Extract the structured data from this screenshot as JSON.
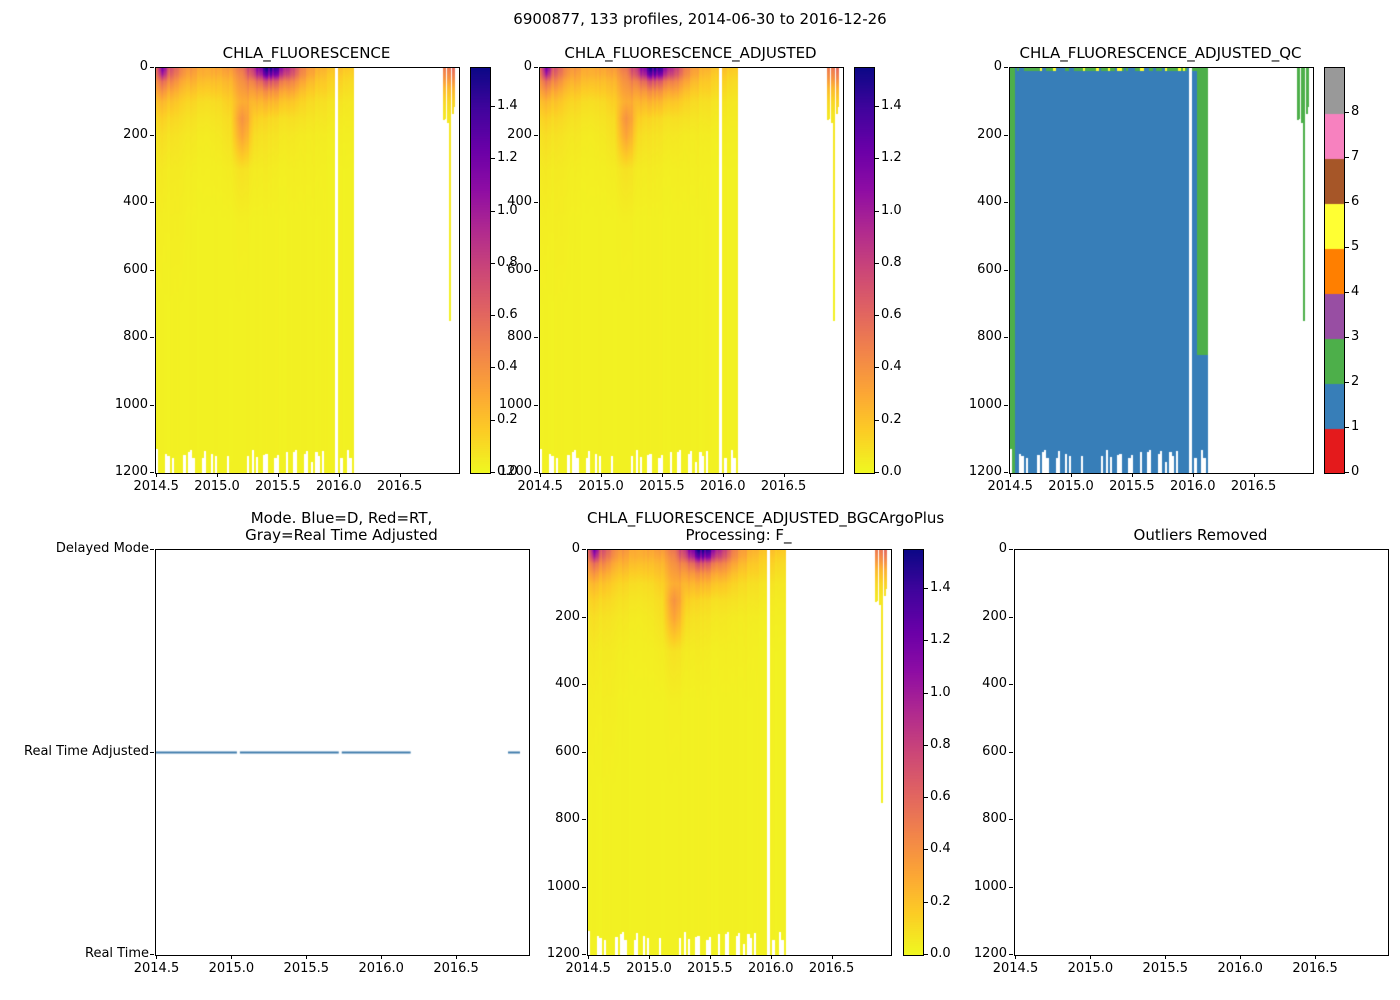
{
  "figure": {
    "title": "6900877, 133 profiles, 2014-06-30 to 2016-12-26",
    "float_id": "6900877",
    "n_profiles": 133,
    "date_start": "2014-06-30",
    "date_end": "2016-12-26",
    "background": "#ffffff"
  },
  "palette": {
    "axis_color": "#000000",
    "mode_line": "#3d7bab",
    "plasma_stops": [
      [
        0.0,
        "#0d0887"
      ],
      [
        0.1,
        "#41049d"
      ],
      [
        0.2,
        "#6a00a8"
      ],
      [
        0.3,
        "#8f0da4"
      ],
      [
        0.4,
        "#b12a90"
      ],
      [
        0.5,
        "#cc4778"
      ],
      [
        0.6,
        "#e16462"
      ],
      [
        0.7,
        "#f2844b"
      ],
      [
        0.8,
        "#fca636"
      ],
      [
        0.9,
        "#fcce25"
      ],
      [
        1.0,
        "#f0f921"
      ]
    ],
    "qc_colors": [
      "#e41a1c",
      "#377eb8",
      "#4daf4a",
      "#984ea3",
      "#ff7f00",
      "#ffff33",
      "#a65628",
      "#f781bf",
      "#999999"
    ]
  },
  "axes_shared": {
    "xlim": [
      2014.49,
      2016.98
    ],
    "x_ticks": {
      "values": [
        2014.5,
        2015.0,
        2015.5,
        2016.0,
        2016.5
      ],
      "labels": [
        "2014.5",
        "2015.0",
        "2015.5",
        "2016.0",
        "2016.5"
      ]
    },
    "depth_lim": [
      0,
      1200
    ],
    "depth_ticks": {
      "values": [
        0,
        200,
        400,
        600,
        800,
        1000,
        1200
      ],
      "labels": [
        "0",
        "200",
        "400",
        "600",
        "800",
        "1000",
        "1200"
      ]
    }
  },
  "field": {
    "t_start": 2014.49,
    "t_end": 2016.12,
    "profile_spacing_years": 0.0187,
    "gaps": [
      [
        2015.96,
        2015.985
      ]
    ],
    "bottom_depth_base": 1150,
    "bottom_depth_max": 1200,
    "grid": {
      "times": [
        2014.49,
        2014.55,
        2014.6,
        2014.7,
        2014.8,
        2014.9,
        2015.0,
        2015.1,
        2015.2,
        2015.3,
        2015.4,
        2015.5,
        2015.6,
        2015.7,
        2015.8,
        2015.9,
        2016.0,
        2016.12
      ],
      "depths": [
        0,
        20,
        40,
        70,
        100,
        150,
        200,
        300,
        450,
        700,
        1000,
        1200
      ],
      "values": [
        [
          0.55,
          1.25,
          0.7,
          0.45,
          0.35,
          0.3,
          0.32,
          0.38,
          0.55,
          0.95,
          1.45,
          1.3,
          0.8,
          0.45,
          0.3,
          0.22,
          0.2,
          0.16
        ],
        [
          0.5,
          1.0,
          0.6,
          0.4,
          0.3,
          0.28,
          0.28,
          0.32,
          0.48,
          0.8,
          1.2,
          1.05,
          0.68,
          0.4,
          0.26,
          0.18,
          0.16,
          0.13
        ],
        [
          0.4,
          0.6,
          0.45,
          0.3,
          0.25,
          0.22,
          0.22,
          0.26,
          0.42,
          0.52,
          0.7,
          0.6,
          0.45,
          0.3,
          0.2,
          0.15,
          0.13,
          0.1
        ],
        [
          0.3,
          0.4,
          0.3,
          0.22,
          0.18,
          0.16,
          0.17,
          0.21,
          0.36,
          0.36,
          0.4,
          0.36,
          0.3,
          0.2,
          0.15,
          0.12,
          0.1,
          0.08
        ],
        [
          0.2,
          0.25,
          0.2,
          0.15,
          0.12,
          0.1,
          0.11,
          0.16,
          0.3,
          0.25,
          0.25,
          0.22,
          0.18,
          0.13,
          0.1,
          0.08,
          0.07,
          0.06
        ],
        [
          0.12,
          0.15,
          0.12,
          0.1,
          0.08,
          0.07,
          0.08,
          0.11,
          0.42,
          0.15,
          0.12,
          0.1,
          0.09,
          0.08,
          0.07,
          0.06,
          0.05,
          0.05
        ],
        [
          0.08,
          0.1,
          0.08,
          0.07,
          0.06,
          0.05,
          0.06,
          0.09,
          0.34,
          0.1,
          0.08,
          0.07,
          0.06,
          0.05,
          0.05,
          0.04,
          0.04,
          0.04
        ],
        [
          0.05,
          0.06,
          0.05,
          0.05,
          0.04,
          0.04,
          0.04,
          0.05,
          0.09,
          0.05,
          0.05,
          0.04,
          0.04,
          0.04,
          0.04,
          0.03,
          0.03,
          0.03
        ],
        [
          0.04,
          0.04,
          0.04,
          0.04,
          0.03,
          0.03,
          0.03,
          0.03,
          0.04,
          0.03,
          0.03,
          0.03,
          0.03,
          0.03,
          0.03,
          0.03,
          0.03,
          0.03
        ],
        [
          0.03,
          0.03,
          0.03,
          0.03,
          0.03,
          0.03,
          0.03,
          0.03,
          0.03,
          0.03,
          0.03,
          0.03,
          0.03,
          0.03,
          0.03,
          0.03,
          0.03,
          0.03
        ],
        [
          0.03,
          0.03,
          0.03,
          0.03,
          0.03,
          0.03,
          0.03,
          0.03,
          0.03,
          0.03,
          0.03,
          0.03,
          0.03,
          0.03,
          0.03,
          0.03,
          0.03,
          0.03
        ],
        [
          0.03,
          0.03,
          0.03,
          0.03,
          0.03,
          0.03,
          0.03,
          0.03,
          0.03,
          0.03,
          0.03,
          0.03,
          0.03,
          0.03,
          0.03,
          0.03,
          0.03,
          0.03
        ]
      ]
    },
    "late_block": {
      "t0": 2016.85,
      "t1": 2016.95,
      "gaps": [
        [
          2016.872,
          2016.878
        ],
        [
          2016.918,
          2016.924
        ]
      ],
      "base_depth": 140,
      "streak": {
        "t0": 2016.895,
        "t1": 2016.911,
        "depth": 750
      },
      "profile": [
        [
          0,
          0.55
        ],
        [
          30,
          0.42
        ],
        [
          60,
          0.25
        ],
        [
          100,
          0.13
        ],
        [
          140,
          0.07
        ],
        [
          760,
          0.03
        ]
      ]
    }
  },
  "qc_field": {
    "default_flag": 1,
    "surface_depth": 8,
    "surface_dash_flags": [
      2,
      5
    ],
    "regions": [
      {
        "t0": 2014.49,
        "t1": 2014.535,
        "d0": 0,
        "d1": 1200,
        "flag": 2
      },
      {
        "t0": 2016.03,
        "t1": 2016.12,
        "d0": 0,
        "d1": 850,
        "flag": 2
      },
      {
        "t0": 2016.85,
        "t1": 2016.95,
        "d0": 0,
        "d1": 760,
        "flag": 2
      }
    ]
  },
  "chart_data": [
    {
      "type": "heatmap",
      "title": "CHLA_FLUORESCENCE",
      "x": "time (decimal year)",
      "y": "pressure/depth (dbar), 0 at top increasing downward",
      "xlim": [
        2014.49,
        2016.98
      ],
      "ylim": [
        1200,
        0
      ],
      "cmap": "plasma_r",
      "colorbar": {
        "vmin": 0.0,
        "vmax": 1.55,
        "ticks": [
          0.0,
          0.2,
          0.4,
          0.6,
          0.8,
          1.0,
          1.2,
          1.4
        ],
        "labels": [
          "0.0",
          "0.2",
          "0.4",
          "0.6",
          "0.8",
          "1.0",
          "1.2",
          "1.4"
        ]
      },
      "data_source": "field.grid"
    },
    {
      "type": "heatmap",
      "title": "CHLA_FLUORESCENCE_ADJUSTED",
      "xlim": [
        2014.49,
        2016.98
      ],
      "ylim": [
        1200,
        0
      ],
      "cmap": "plasma_r",
      "colorbar": {
        "vmin": 0.0,
        "vmax": 1.55,
        "ticks": [
          0.0,
          0.2,
          0.4,
          0.6,
          0.8,
          1.0,
          1.2,
          1.4
        ],
        "labels": [
          "0.0",
          "0.2",
          "0.4",
          "0.6",
          "0.8",
          "1.0",
          "1.2",
          "1.4"
        ]
      },
      "data_source": "field.grid"
    },
    {
      "type": "heatmap",
      "title": "CHLA_FLUORESCENCE_ADJUSTED_QC",
      "xlim": [
        2014.49,
        2016.98
      ],
      "ylim": [
        1200,
        0
      ],
      "cmap": "Set1 discrete",
      "colorbar": {
        "range": [
          0,
          9
        ],
        "ticks": [
          0,
          1,
          2,
          3,
          4,
          5,
          6,
          7,
          8
        ],
        "labels": [
          "0",
          "1",
          "2",
          "3",
          "4",
          "5",
          "6",
          "7",
          "8"
        ]
      },
      "data_source": "qc_field"
    },
    {
      "type": "line",
      "title_lines": [
        "Mode. Blue=D, Red=RT,",
        "Gray=Real Time Adjusted"
      ],
      "xlim": [
        2014.49,
        2016.98
      ],
      "ylim": [
        0,
        2
      ],
      "y_ticks": {
        "values": [
          2,
          1,
          0
        ],
        "labels": [
          "Delayed Mode",
          "Real Time Adjusted",
          "Real Time"
        ]
      },
      "line_value": 1,
      "line_label": "Real Time Adjusted",
      "segments": [
        [
          2014.49,
          2015.03
        ],
        [
          2015.05,
          2015.71
        ],
        [
          2015.73,
          2016.19
        ],
        [
          2016.84,
          2016.92
        ]
      ]
    },
    {
      "type": "heatmap",
      "title_lines": [
        "CHLA_FLUORESCENCE_ADJUSTED_BGCArgoPlus",
        "Processing: F_"
      ],
      "xlim": [
        2014.49,
        2016.98
      ],
      "ylim": [
        1200,
        0
      ],
      "cmap": "plasma_r",
      "colorbar": {
        "vmin": 0.0,
        "vmax": 1.55,
        "ticks": [
          0.0,
          0.2,
          0.4,
          0.6,
          0.8,
          1.0,
          1.2,
          1.4
        ],
        "labels": [
          "0.0",
          "0.2",
          "0.4",
          "0.6",
          "0.8",
          "1.0",
          "1.2",
          "1.4"
        ]
      },
      "data_source": "field.grid"
    },
    {
      "type": "empty",
      "title": "Outliers Removed",
      "xlim": [
        2014.49,
        2016.98
      ],
      "ylim": [
        1200,
        0
      ],
      "no_data": true
    }
  ]
}
